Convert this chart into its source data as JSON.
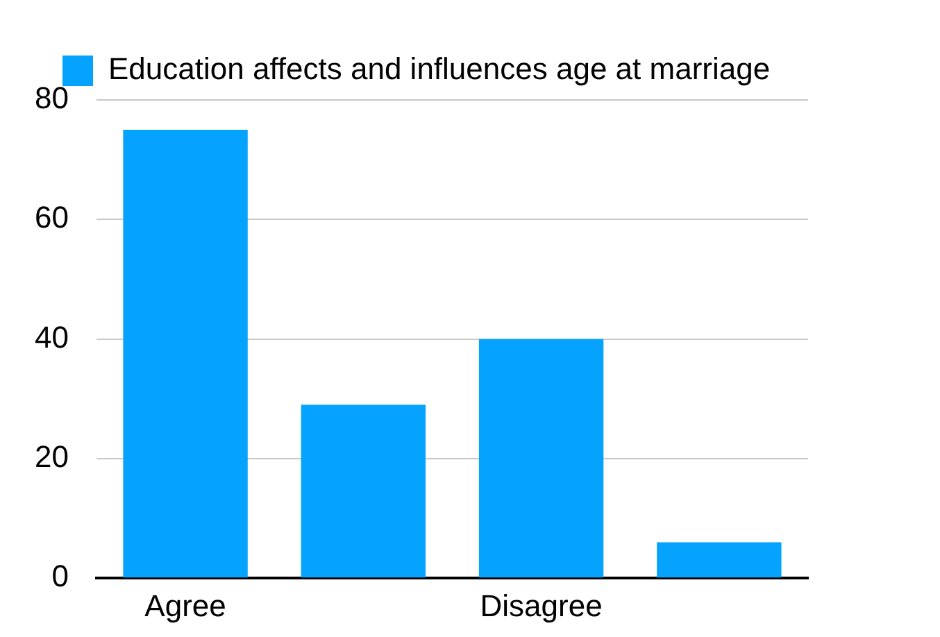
{
  "chart_data": {
    "type": "bar",
    "categories": [
      "Agree",
      null,
      "Disagree",
      null
    ],
    "series": [
      {
        "name": "Education affects and influences age at marriage",
        "color": "#05a3fe",
        "values": [
          75,
          29,
          40,
          6
        ]
      }
    ],
    "ylim": [
      0,
      80
    ],
    "yticks": [
      0,
      20,
      40,
      60,
      80
    ],
    "grid": "y",
    "legend": "top"
  }
}
